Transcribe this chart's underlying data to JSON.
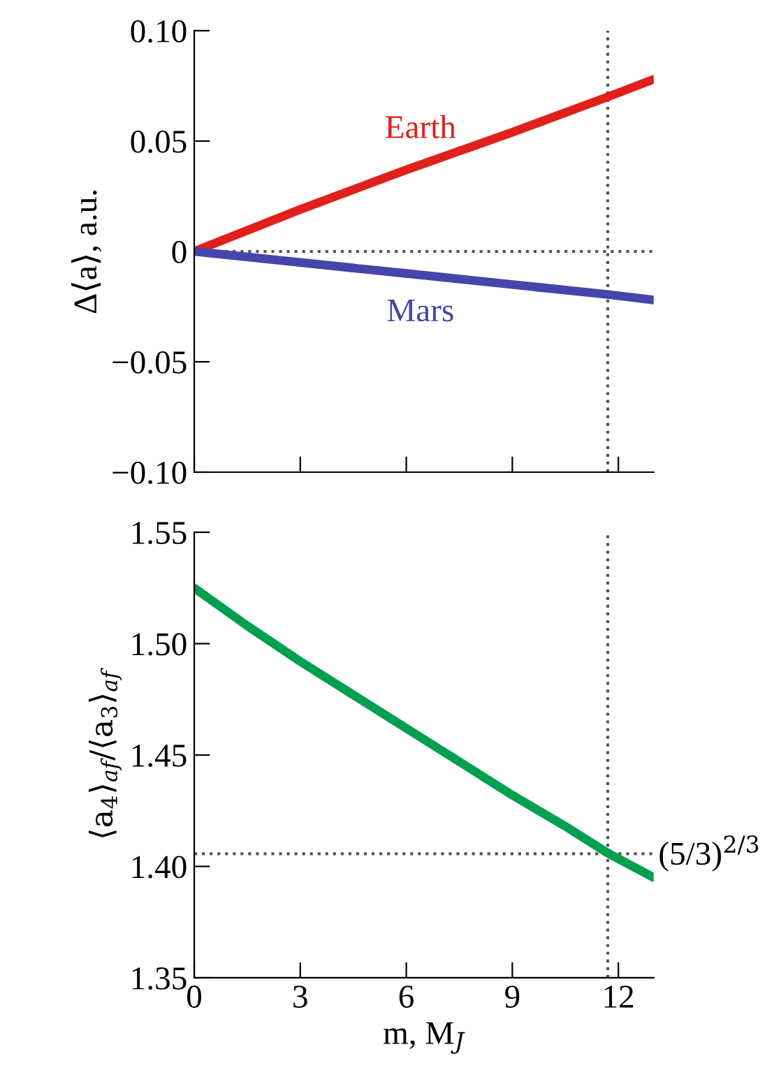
{
  "chart_data": [
    {
      "type": "line",
      "ylabel": "Δ⟨a⟩, a.u.",
      "xlim": [
        0,
        13
      ],
      "xticks": [
        0,
        3,
        6,
        9,
        12
      ],
      "ylim": [
        -0.1,
        0.1
      ],
      "yticks": [
        {
          "value": -0.1,
          "label": "−0.10"
        },
        {
          "value": -0.05,
          "label": "−0.05"
        },
        0,
        0.05,
        {
          "value": 0.1,
          "label": "0.10"
        }
      ],
      "tick_labels": "y",
      "grid": false,
      "legend": false,
      "series": [
        {
          "name": "Earth",
          "color": "#e0201b",
          "x": [
            0,
            3,
            6,
            9,
            11.7,
            13
          ],
          "values": [
            0,
            0.019,
            0.037,
            0.054,
            0.07,
            0.078
          ]
        },
        {
          "name": "Mars",
          "color": "#4545aa",
          "x": [
            0,
            3,
            6,
            9,
            11.7,
            13
          ],
          "values": [
            0,
            -0.005,
            -0.01,
            -0.015,
            -0.0195,
            -0.022
          ]
        }
      ],
      "ref_lines": [
        {
          "axis": "y",
          "value": 0,
          "color": "#555555",
          "line_style": "dotted"
        },
        {
          "axis": "x",
          "value": 11.7,
          "color": "#555555",
          "line_style": "dotted"
        }
      ]
    },
    {
      "type": "line",
      "xlabel": "m, M$_{J}$",
      "ylabel": "⟨a$_{4}$⟩$_{af}$/⟨a$_{3}$⟩$_{af}$",
      "xlim": [
        0,
        13
      ],
      "xticks": [
        0,
        3,
        6,
        9,
        12
      ],
      "ylim": [
        1.35,
        1.55
      ],
      "yticks": [
        1.35,
        {
          "value": 1.4,
          "label": "1.40"
        },
        1.45,
        {
          "value": 1.5,
          "label": "1.50"
        },
        1.55
      ],
      "grid": false,
      "legend": false,
      "annotations": [
        "(5/3)$^{2/3}$"
      ],
      "series": [
        {
          "color": "#00a050",
          "x": [
            0,
            1.5,
            3,
            4.5,
            6,
            7.5,
            9,
            10.5,
            11.7,
            13
          ],
          "values": [
            1.525,
            1.508,
            1.492,
            1.477,
            1.462,
            1.447,
            1.432,
            1.418,
            1.406,
            1.395
          ]
        }
      ],
      "ref_lines": [
        {
          "axis": "y",
          "value": 1.4057,
          "color": "#555555",
          "line_style": "dotted"
        },
        {
          "axis": "x",
          "value": 11.7,
          "color": "#555555",
          "line_style": "dotted"
        }
      ]
    }
  ]
}
